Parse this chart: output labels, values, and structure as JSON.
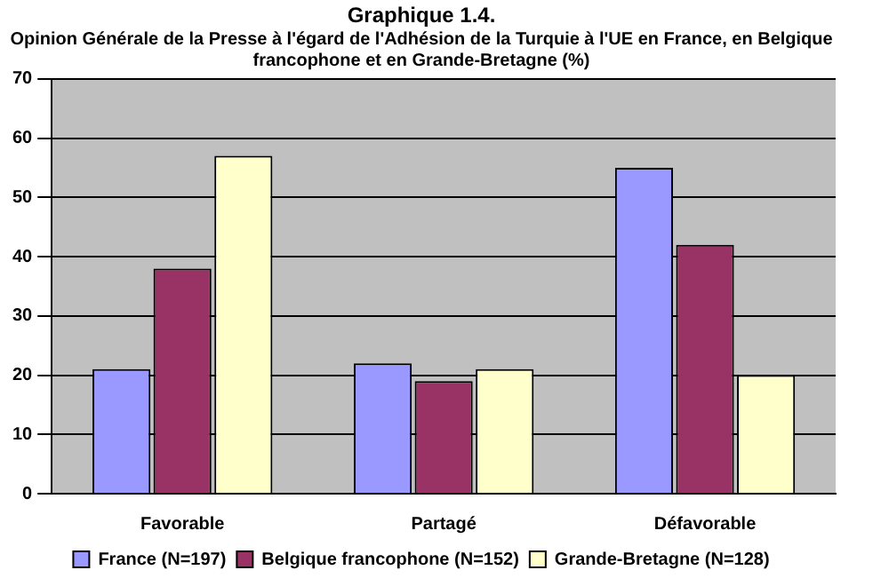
{
  "chart_data": {
    "type": "bar",
    "title": "Graphique 1.4.",
    "subtitle": "Opinion Générale de la Presse à l'égard de l'Adhésion de la Turquie à l'UE en France, en Belgique francophone et en Grande-Bretagne (%)",
    "categories": [
      "Favorable",
      "Partagé",
      "Défavorable"
    ],
    "series": [
      {
        "name": "France (N=197)",
        "color": "#9999ff",
        "values": [
          21,
          22,
          55
        ]
      },
      {
        "name": "Belgique francophone (N=152)",
        "color": "#993366",
        "values": [
          38,
          19,
          42
        ]
      },
      {
        "name": "Grande-Bretagne (N=128)",
        "color": "#ffffcc",
        "values": [
          57,
          21,
          20
        ]
      }
    ],
    "ylim": [
      0,
      70
    ],
    "yticks": [
      0,
      10,
      20,
      30,
      40,
      50,
      60,
      70
    ],
    "grid": "y",
    "legend": "bottom"
  }
}
